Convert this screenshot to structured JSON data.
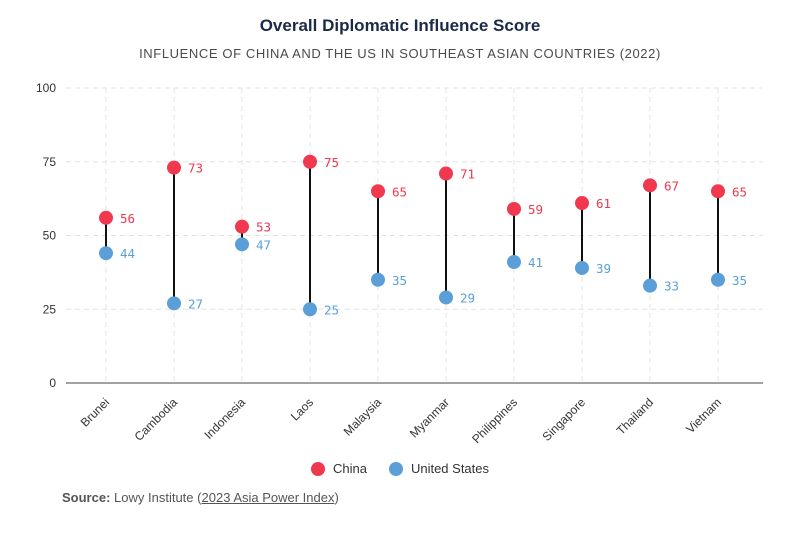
{
  "title": "Overall Diplomatic Influence Score",
  "subtitle": "INFLUENCE OF CHINA AND THE US IN SOUTHEAST ASIAN COUNTRIES (2022)",
  "source": {
    "label": "Source:",
    "org": "Lowy Institute",
    "open_paren": "(",
    "link_text": "2023 Asia Power Index",
    "close_paren": ")"
  },
  "legend": [
    {
      "label": "China",
      "color": "#f0384f"
    },
    {
      "label": "United States",
      "color": "#5a9fd8"
    }
  ],
  "chart_data": {
    "type": "dumbbell",
    "title": "Overall Diplomatic Influence Score",
    "subtitle": "INFLUENCE OF CHINA AND THE US IN SOUTHEAST ASIAN COUNTRIES (2022)",
    "categories": [
      "Brunei",
      "Cambodia",
      "Indonesia",
      "Laos",
      "Malaysia",
      "Myanmar",
      "Philippines",
      "Singapore",
      "Thailand",
      "Vietnam"
    ],
    "series": [
      {
        "name": "China",
        "color": "#f0384f",
        "values": [
          56,
          73,
          53,
          75,
          65,
          71,
          59,
          61,
          67,
          65
        ]
      },
      {
        "name": "United States",
        "color": "#5a9fd8",
        "values": [
          44,
          27,
          47,
          25,
          35,
          29,
          41,
          39,
          33,
          35
        ]
      }
    ],
    "ylim": [
      0,
      100
    ],
    "yticks": [
      0,
      25,
      50,
      75,
      100
    ],
    "grid": true,
    "legend_position": "bottom-center"
  }
}
